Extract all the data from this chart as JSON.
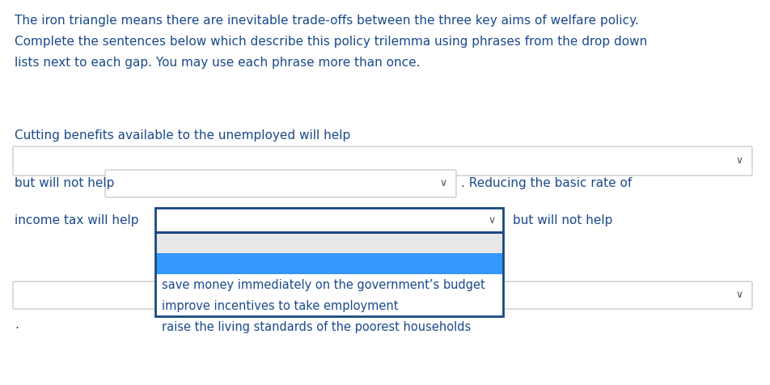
{
  "background_color": "#ffffff",
  "intro_lines": [
    "The iron triangle means there are inevitable trade-offs between the three key aims of welfare policy.",
    "Complete the sentences below which describe this policy trilemma using phrases from the drop down",
    "lists next to each gap. You may use each phrase more than once."
  ],
  "text_color": "#1a4a8a",
  "sentence1_label": "Cutting benefits available to the unemployed will help",
  "sentence2_prefix": "but will not help",
  "sentence2_suffix": ". Reducing the basic rate of",
  "sentence3_prefix": "income tax will help",
  "sentence3_suffix": "but will not help",
  "sentence4_suffix": ".",
  "dropdown_highlight_color": "#3399ff",
  "dropdown_items": [
    "save money immediately on the government’s budget",
    "improve incentives to take employment",
    "raise the living standards of the poorest households"
  ],
  "dropdown_item_color": "#1a4a8a",
  "dropdown_border_color": "#1a4880",
  "dropdown_border_light": "#bbbbbb",
  "dropdown_box_color": "#ffffff",
  "arrow_color": "#555555"
}
